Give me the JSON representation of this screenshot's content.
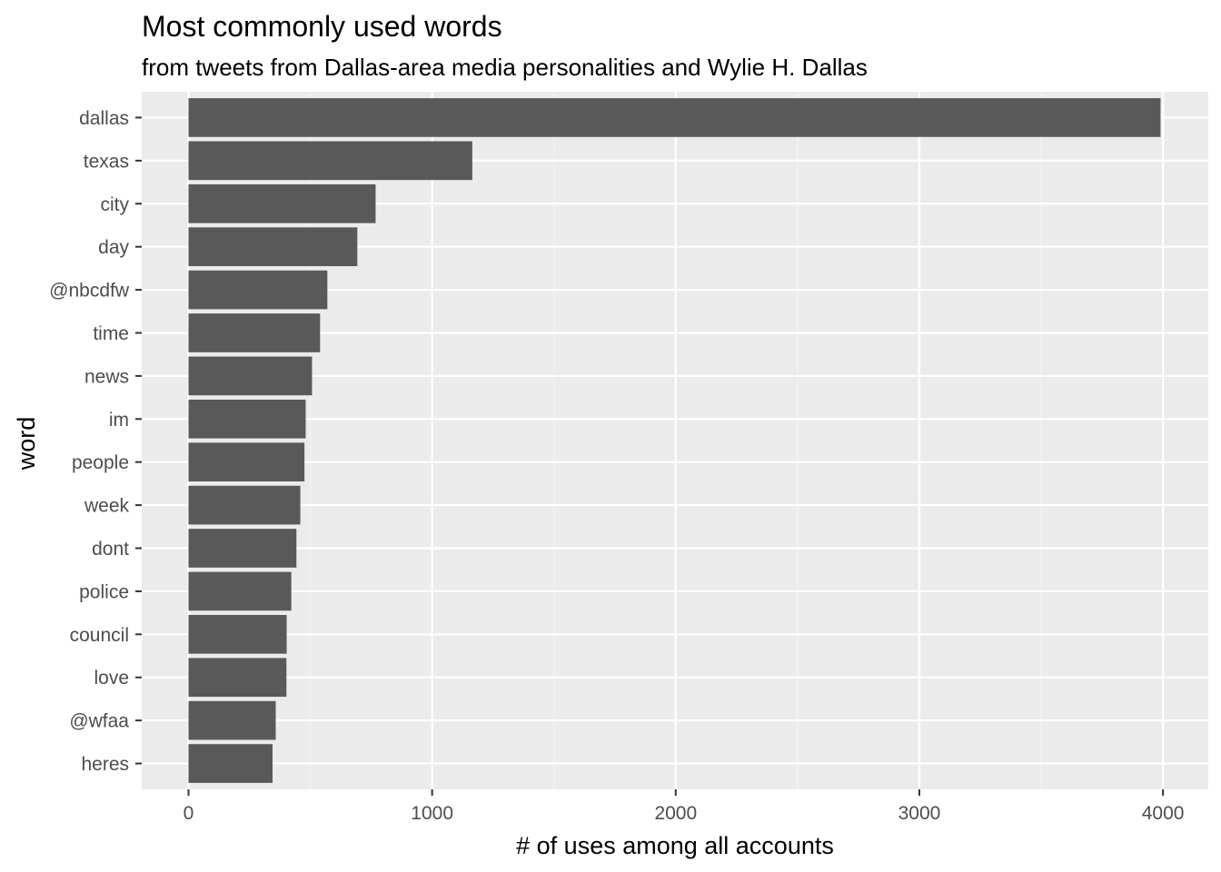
{
  "chart_data": {
    "type": "bar",
    "orientation": "horizontal",
    "title": "Most commonly used words",
    "subtitle": "from tweets from Dallas-area media personalities and Wylie H. Dallas",
    "xlabel": "# of uses among all accounts",
    "ylabel": "word",
    "categories": [
      "dallas",
      "texas",
      "city",
      "day",
      "@nbcdfw",
      "time",
      "news",
      "im",
      "people",
      "week",
      "dont",
      "police",
      "council",
      "love",
      "@wfaa",
      "heres"
    ],
    "values": [
      3990,
      1165,
      768,
      693,
      570,
      540,
      507,
      481,
      476,
      459,
      443,
      422,
      403,
      402,
      358,
      345
    ],
    "xlim": [
      -192,
      4186
    ],
    "x_ticks": [
      0,
      1000,
      2000,
      3000,
      4000
    ],
    "x_tick_labels": [
      "0",
      "1000",
      "2000",
      "3000",
      "4000"
    ],
    "grid": true,
    "legend": "none",
    "colors": {
      "bar": "#595959",
      "panel_background": "#ebebeb",
      "grid_major": "#ffffff",
      "grid_minor": "#f5f5f5",
      "tick_text": "#4d4d4d",
      "tick_mark": "#333333"
    }
  }
}
